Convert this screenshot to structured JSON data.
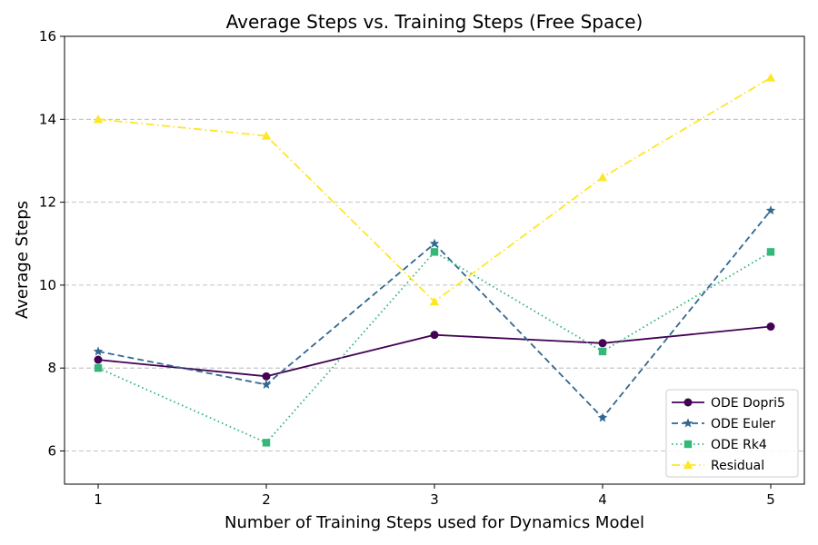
{
  "chart_data": {
    "type": "line",
    "title": "Average Steps vs. Training Steps (Free Space)",
    "xlabel": "Number of Training Steps used for Dynamics Model",
    "ylabel": "Average Steps",
    "x": [
      1,
      2,
      3,
      4,
      5
    ],
    "x_ticks": [
      "1",
      "2",
      "3",
      "4",
      "5"
    ],
    "y_ticks": [
      "6",
      "8",
      "10",
      "12",
      "14",
      "16"
    ],
    "xlim": [
      0.8,
      5.2
    ],
    "ylim": [
      5.2,
      16
    ],
    "grid": "y-dashed",
    "legend_position": "lower-right",
    "series": [
      {
        "name": "ODE Dopri5",
        "values": [
          8.2,
          7.8,
          8.8,
          8.6,
          9.0
        ],
        "color": "#440154",
        "marker": "circle",
        "linestyle": "solid"
      },
      {
        "name": "ODE Euler",
        "values": [
          8.4,
          7.6,
          11.0,
          6.8,
          11.8
        ],
        "color": "#31688e",
        "marker": "star",
        "linestyle": "dashed"
      },
      {
        "name": "ODE Rk4",
        "values": [
          8.0,
          6.2,
          10.8,
          8.4,
          10.8
        ],
        "color": "#35b779",
        "marker": "square",
        "linestyle": "dotted"
      },
      {
        "name": "Residual",
        "values": [
          14.0,
          13.6,
          9.6,
          12.6,
          15.0
        ],
        "color": "#fde725",
        "marker": "triangle",
        "linestyle": "dashdot"
      }
    ]
  }
}
